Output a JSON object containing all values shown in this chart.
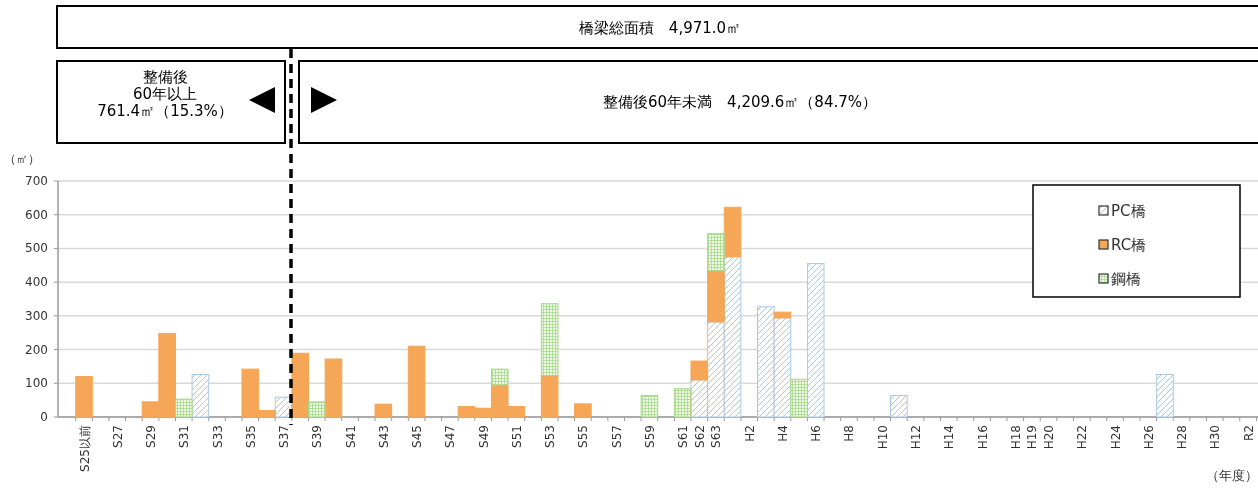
{
  "chart_data": {
    "type": "bar",
    "stacked": true,
    "title": "橋梁総面積　4,971.0㎡",
    "annotations": [
      "整備後\n60年以上\n761.4㎡（15.3%）",
      "整備後60年未満　4,209.6㎡（84.7%）"
    ],
    "ylabel": "（㎡）",
    "xlabel": "（年度）",
    "categories": [
      "S25以前",
      null,
      "S27",
      null,
      "S29",
      null,
      "S31",
      null,
      "S33",
      null,
      "S35",
      null,
      "S37",
      null,
      "S39",
      null,
      "S41",
      null,
      "S43",
      null,
      "S45",
      null,
      "S47",
      null,
      "S49",
      null,
      "S51",
      null,
      "S53",
      null,
      "S55",
      null,
      "S57",
      null,
      "S59",
      null,
      "S61",
      "S62",
      "S63",
      null,
      "H2",
      null,
      "H4",
      null,
      "H6",
      null,
      "H8",
      null,
      "H10",
      null,
      "H12",
      null,
      "H14",
      null,
      "H16",
      null,
      "H18",
      "H19",
      "H20",
      null,
      "H22",
      null,
      "H24",
      null,
      "H26",
      null,
      "H28",
      null,
      "H30",
      null,
      "R2"
    ],
    "series": [
      {
        "name": "PC橋",
        "color": "#a9c8e4",
        "values": [
          0,
          0,
          0,
          0,
          0,
          0,
          0,
          126,
          0,
          0,
          0,
          0,
          59,
          0,
          0,
          0,
          0,
          0,
          0,
          0,
          0,
          0,
          0,
          0,
          0,
          0,
          0,
          0,
          0,
          0,
          0,
          0,
          0,
          0,
          0,
          0,
          0,
          110,
          282,
          475,
          0,
          327,
          294,
          0,
          455,
          0,
          0,
          0,
          0,
          64,
          0,
          0,
          0,
          0,
          0,
          0,
          0,
          0,
          0,
          0,
          0,
          0,
          0,
          0,
          0,
          126,
          0,
          0,
          0,
          0,
          0
        ]
      },
      {
        "name": "RC橋",
        "color": "#f5a656",
        "values": [
          120,
          0,
          0,
          0,
          45,
          248,
          0,
          0,
          0,
          0,
          142,
          19,
          0,
          189,
          0,
          172,
          0,
          0,
          38,
          0,
          210,
          0,
          0,
          31,
          26,
          95,
          31,
          0,
          123,
          0,
          39,
          0,
          0,
          0,
          0,
          0,
          0,
          56,
          152,
          147,
          0,
          0,
          17,
          0,
          0,
          0,
          0,
          0,
          0,
          0,
          0,
          0,
          0,
          0,
          0,
          0,
          0,
          0,
          0,
          0,
          0,
          0,
          0,
          0,
          0,
          0,
          0,
          0,
          0,
          0,
          0
        ]
      },
      {
        "name": "鋼橋",
        "color": "#a8d88c",
        "values": [
          0,
          0,
          0,
          0,
          0,
          0,
          53,
          0,
          0,
          0,
          0,
          0,
          0,
          0,
          45,
          0,
          0,
          0,
          0,
          0,
          0,
          0,
          0,
          0,
          0,
          47,
          0,
          0,
          213,
          0,
          0,
          0,
          0,
          0,
          64,
          0,
          84,
          0,
          110,
          0,
          0,
          0,
          0,
          112,
          0,
          0,
          0,
          0,
          0,
          0,
          0,
          0,
          0,
          0,
          0,
          0,
          0,
          0,
          0,
          0,
          0,
          0,
          0,
          0,
          0,
          0,
          0,
          0,
          0,
          0,
          0
        ]
      }
    ],
    "ylim": [
      0,
      700
    ],
    "yticks": [
      0,
      100,
      200,
      300,
      400,
      500,
      600,
      700
    ],
    "grid": "y",
    "legend": "top right"
  }
}
